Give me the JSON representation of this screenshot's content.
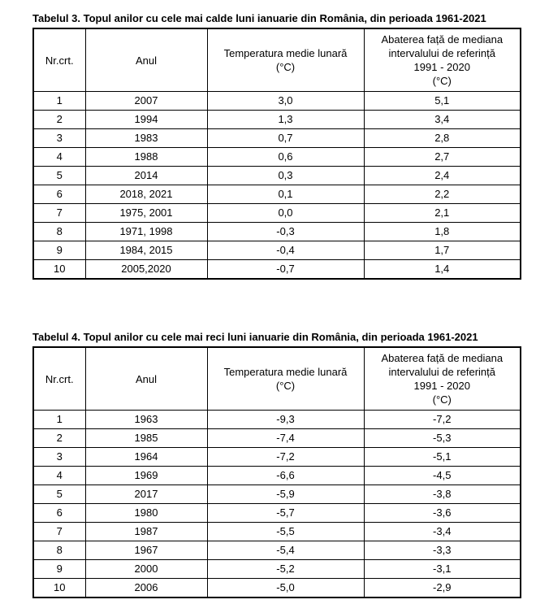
{
  "tables": [
    {
      "title": "Tabelul 3. Topul anilor cu cele mai calde luni ianuarie din România, din perioada 1961-2021",
      "headers": [
        [
          "Nr.crt."
        ],
        [
          "Anul"
        ],
        [
          "Temperatura medie lunară",
          "(°C)"
        ],
        [
          "Abaterea față de mediana",
          "intervalului de referință",
          "1991 - 2020",
          "(°C)"
        ]
      ],
      "rows": [
        [
          "1",
          "2007",
          "3,0",
          "5,1"
        ],
        [
          "2",
          "1994",
          "1,3",
          "3,4"
        ],
        [
          "3",
          "1983",
          "0,7",
          "2,8"
        ],
        [
          "4",
          "1988",
          "0,6",
          "2,7"
        ],
        [
          "5",
          "2014",
          "0,3",
          "2,4"
        ],
        [
          "6",
          "2018, 2021",
          "0,1",
          "2,2"
        ],
        [
          "7",
          "1975, 2001",
          "0,0",
          "2,1"
        ],
        [
          "8",
          "1971, 1998",
          "-0,3",
          "1,8"
        ],
        [
          "9",
          "1984, 2015",
          "-0,4",
          "1,7"
        ],
        [
          "10",
          "2005,2020",
          "-0,7",
          "1,4"
        ]
      ]
    },
    {
      "title": "Tabelul 4. Topul anilor cu cele mai reci luni ianuarie din România, din perioada 1961-2021",
      "headers": [
        [
          "Nr.crt."
        ],
        [
          "Anul"
        ],
        [
          "Temperatura medie lunară",
          "(°C)"
        ],
        [
          "Abaterea față de mediana",
          "intervalului de referință",
          "1991 - 2020",
          "(°C)"
        ]
      ],
      "rows": [
        [
          "1",
          "1963",
          "-9,3",
          "-7,2"
        ],
        [
          "2",
          "1985",
          "-7,4",
          "-5,3"
        ],
        [
          "3",
          "1964",
          "-7,2",
          "-5,1"
        ],
        [
          "4",
          "1969",
          "-6,6",
          "-4,5"
        ],
        [
          "5",
          "2017",
          "-5,9",
          "-3,8"
        ],
        [
          "6",
          "1980",
          "-5,7",
          "-3,6"
        ],
        [
          "7",
          "1987",
          "-5,5",
          "-3,4"
        ],
        [
          "8",
          "1967",
          "-5,4",
          "-3,3"
        ],
        [
          "9",
          "2000",
          "-5,2",
          "-3,1"
        ],
        [
          "10",
          "2006",
          "-5,0",
          "-2,9"
        ]
      ]
    }
  ]
}
